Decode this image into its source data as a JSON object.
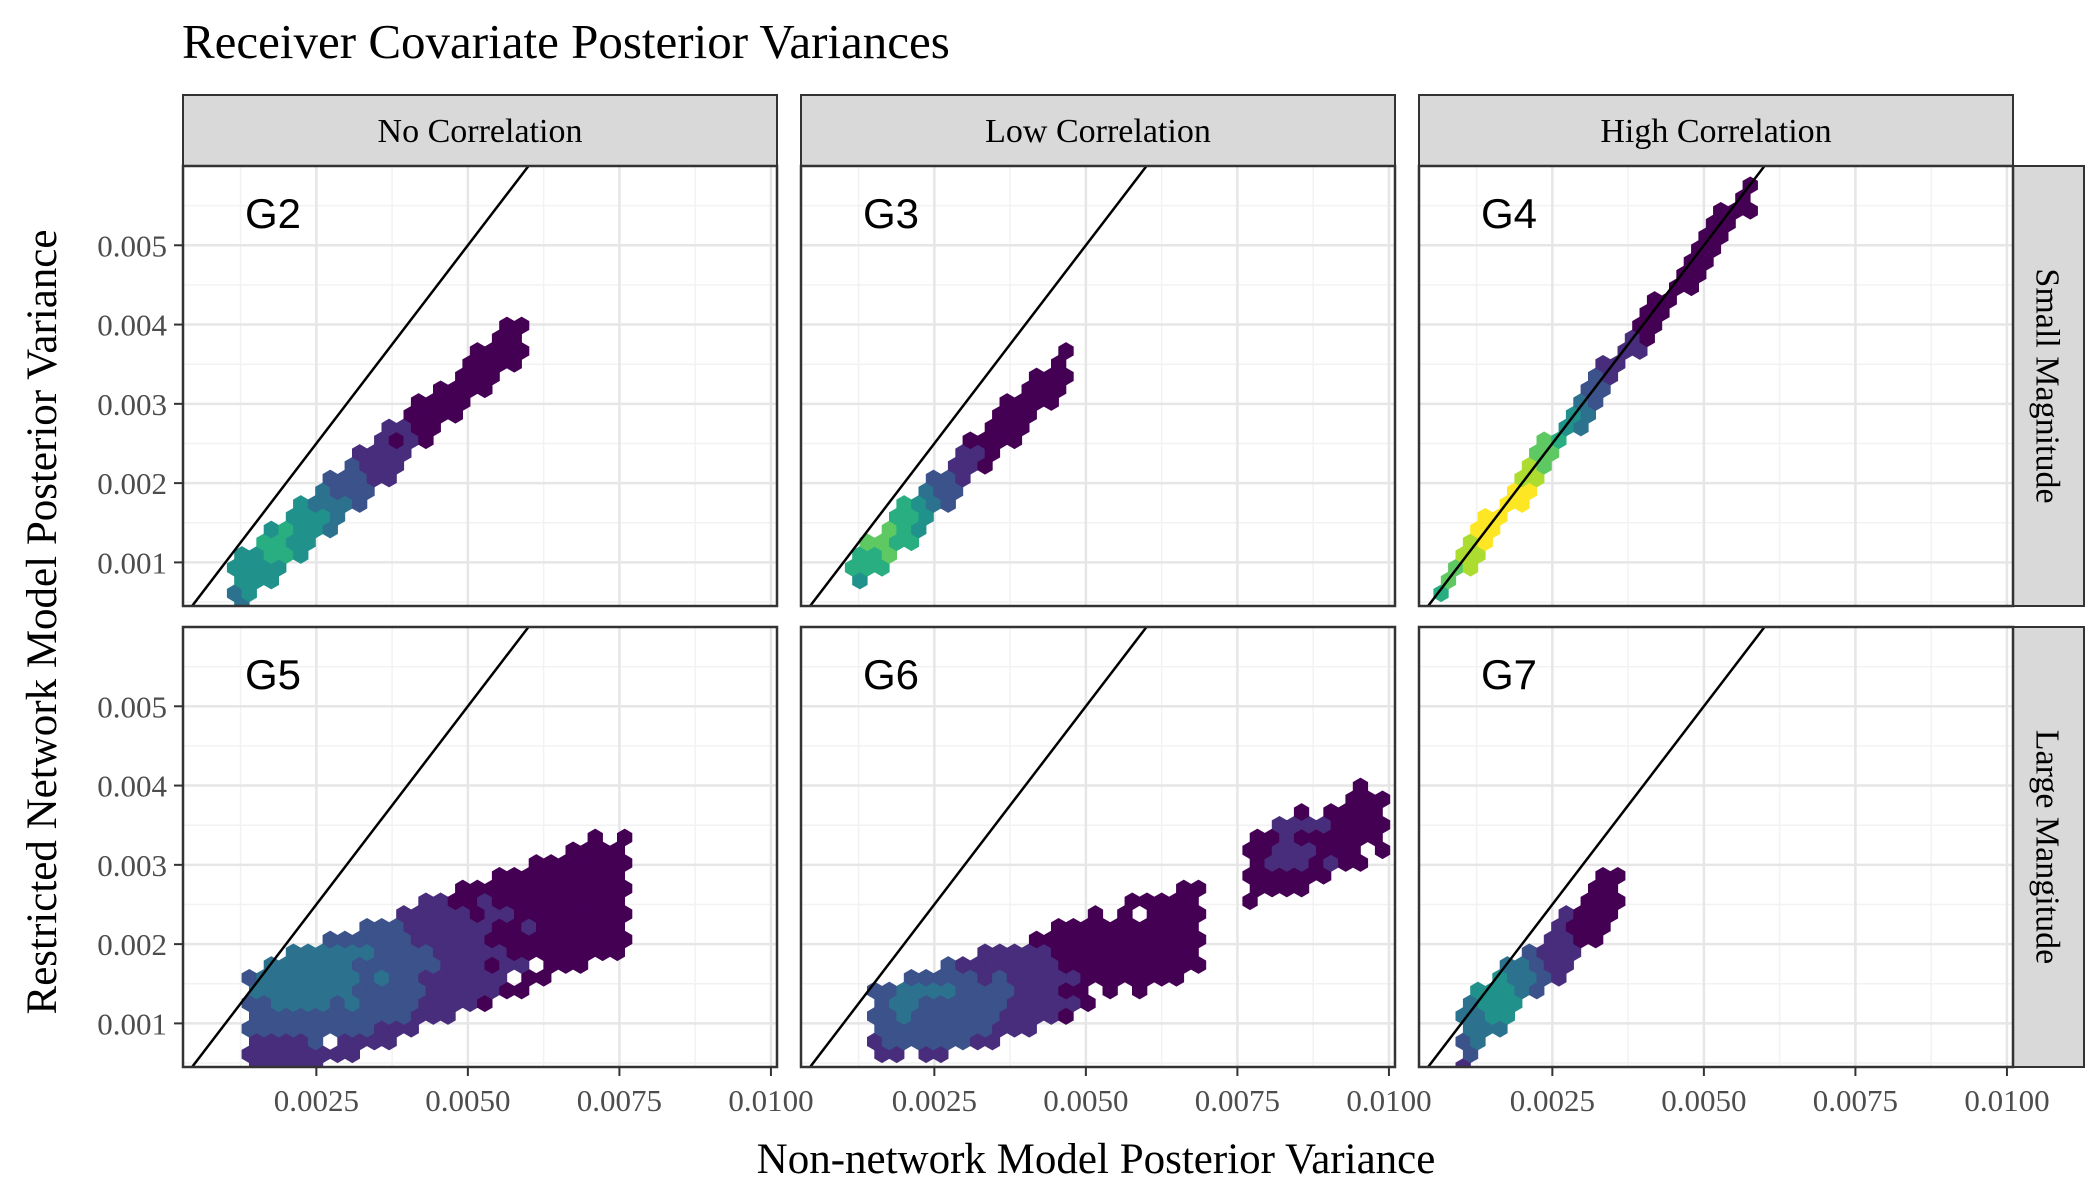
{
  "title": "Receiver Covariate Posterior Variances",
  "xlabel": "Non-network Model Posterior Variance",
  "ylabel": "Restricted Network Model Posterior Variance",
  "columns": [
    "No Correlation",
    "Low Correlation",
    "High Correlation"
  ],
  "rows": [
    "Small Magnitude",
    "Large Mangitude"
  ],
  "x_ticks": [
    "0.0025",
    "0.0050",
    "0.0075",
    "0.0100"
  ],
  "y_ticks": [
    "0.001",
    "0.002",
    "0.003",
    "0.004",
    "0.005"
  ],
  "colors": {
    "panel_border": "#333333",
    "strip_fill": "#d9d9d9",
    "grid_major": "#e6e6e6",
    "grid_minor": "#f2f2f2",
    "reference_line": "#000000",
    "fill_scale": [
      "#440154",
      "#472d7b",
      "#3b528b",
      "#2c728e",
      "#21918c",
      "#28ae80",
      "#5ec962",
      "#addc30",
      "#fde725"
    ]
  },
  "chart_data": {
    "type": "hexbin",
    "title": "Receiver Covariate Posterior Variances",
    "xlabel": "Non-network Model Posterior Variance",
    "ylabel": "Restricted Network Model Posterior Variance",
    "xlim": [
      0.0003,
      0.0101
    ],
    "ylim": [
      0.00045,
      0.006
    ],
    "x_ticks": [
      0.0025,
      0.005,
      0.0075,
      0.01
    ],
    "y_ticks": [
      0.001,
      0.002,
      0.003,
      0.004,
      0.005
    ],
    "reference_line": {
      "slope": 1,
      "intercept": 0
    },
    "facets": [
      {
        "label": "G2",
        "column": "No Correlation",
        "row": "Small Magnitude",
        "clusters": [
          {
            "x": [
              0.0012,
              0.0058
            ],
            "y": [
              0.00075,
              0.0038
            ],
            "width": 0.00035,
            "peak_x": 0.0018,
            "peak_y": 0.0012,
            "peak": 0.55
          }
        ]
      },
      {
        "label": "G3",
        "column": "Low Correlation",
        "row": "Small Magnitude",
        "clusters": [
          {
            "x": [
              0.0012,
              0.0046
            ],
            "y": [
              0.00085,
              0.0034
            ],
            "width": 0.0003,
            "peak_x": 0.0016,
            "peak_y": 0.0013,
            "peak": 0.7
          }
        ]
      },
      {
        "label": "G4",
        "column": "High Correlation",
        "row": "Small Magnitude",
        "clusters": [
          {
            "x": [
              0.0007,
              0.0057
            ],
            "y": [
              0.0007,
              0.0056
            ],
            "width": 0.00025,
            "peak_x": 0.0016,
            "peak_y": 0.0016,
            "peak": 1.0
          }
        ]
      },
      {
        "label": "G5",
        "column": "No Correlation",
        "row": "Large Mangitude",
        "clusters": [
          {
            "x": [
              0.0014,
              0.0076
            ],
            "y": [
              0.0009,
              0.0027
            ],
            "width": 0.0008,
            "peak_x": 0.0025,
            "peak_y": 0.0016,
            "peak": 0.35
          }
        ]
      },
      {
        "label": "G6",
        "column": "Low Correlation",
        "row": "Large Mangitude",
        "clusters": [
          {
            "x": [
              0.0016,
              0.0068
            ],
            "y": [
              0.0009,
              0.0022
            ],
            "width": 0.0006,
            "peak_x": 0.0022,
            "peak_y": 0.0013,
            "peak": 0.3
          },
          {
            "x": [
              0.0077,
              0.0098
            ],
            "y": [
              0.0029,
              0.0036
            ],
            "width": 0.0005,
            "peak_x": 0.0085,
            "peak_y": 0.0033,
            "peak": 0.05
          }
        ]
      },
      {
        "label": "G7",
        "column": "High Correlation",
        "row": "Large Mangitude",
        "clusters": [
          {
            "x": [
              0.0011,
              0.0035
            ],
            "y": [
              0.0009,
              0.0026
            ],
            "width": 0.0004,
            "peak_x": 0.0016,
            "peak_y": 0.0013,
            "peak": 0.5
          }
        ]
      }
    ]
  }
}
